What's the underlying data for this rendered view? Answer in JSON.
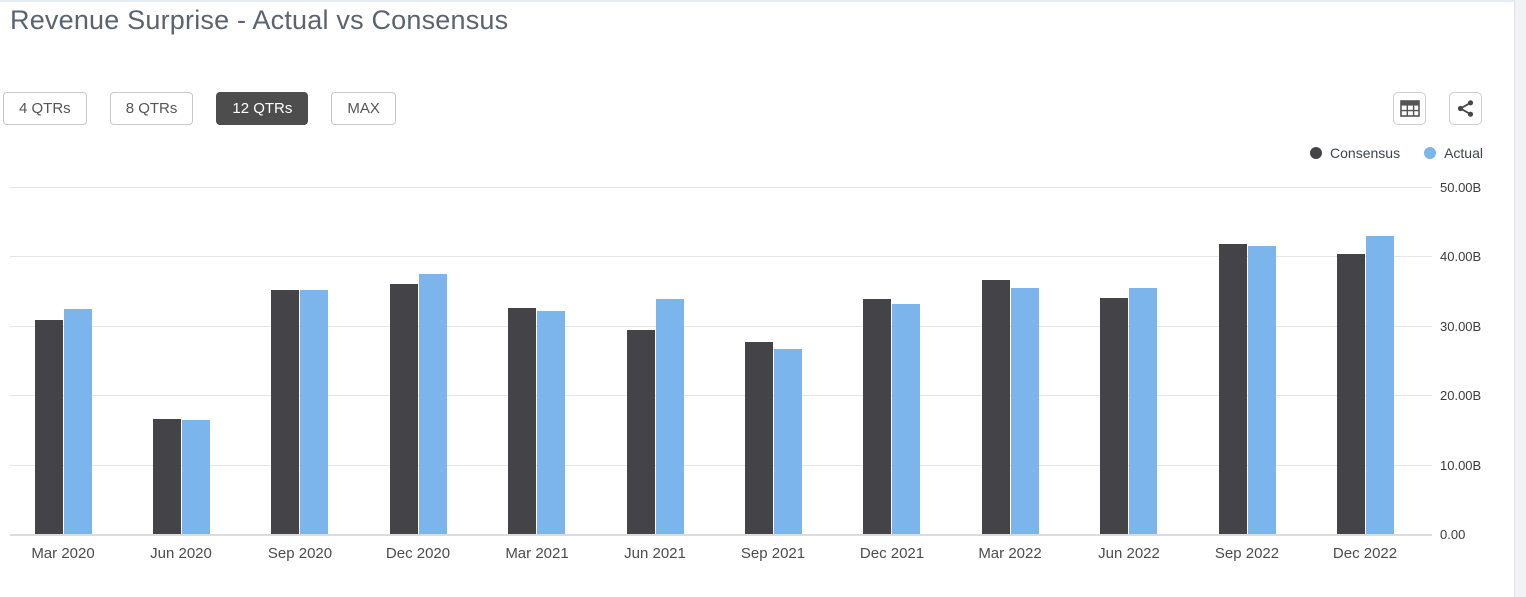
{
  "page": {
    "title": "Revenue Surprise - Actual vs Consensus"
  },
  "toolbar": {
    "range_buttons": [
      {
        "label": "4 QTRs",
        "active": false
      },
      {
        "label": "8 QTRs",
        "active": false
      },
      {
        "label": "12 QTRs",
        "active": true
      },
      {
        "label": "MAX",
        "active": false
      }
    ],
    "icons": [
      "table-view-icon",
      "share-icon"
    ]
  },
  "legend": [
    {
      "label": "Consensus",
      "color": "#434348"
    },
    {
      "label": "Actual",
      "color": "#7cb5ec"
    }
  ],
  "chart_data": {
    "type": "bar",
    "title": "Revenue Surprise - Actual vs Consensus",
    "categories": [
      "Mar 2020",
      "Jun 2020",
      "Sep 2020",
      "Dec 2020",
      "Mar 2021",
      "Jun 2021",
      "Sep 2021",
      "Dec 2021",
      "Mar 2022",
      "Jun 2022",
      "Sep 2022",
      "Dec 2022"
    ],
    "series": [
      {
        "name": "Consensus",
        "color": "#434348",
        "values": [
          30.9,
          16.6,
          35.1,
          36.0,
          32.6,
          29.4,
          27.6,
          33.8,
          36.6,
          34.0,
          41.8,
          40.4
        ]
      },
      {
        "name": "Actual",
        "color": "#7cb5ec",
        "values": [
          32.4,
          16.4,
          35.1,
          37.4,
          32.2,
          33.9,
          26.6,
          33.2,
          35.5,
          35.4,
          41.5,
          43.0
        ]
      }
    ],
    "xlabel": "",
    "ylabel": "",
    "unit": "B",
    "ylim": [
      0,
      50
    ],
    "ytick_labels": [
      "50.00B",
      "40.00B",
      "30.00B",
      "20.00B",
      "10.00B",
      "0.00"
    ],
    "grid": true,
    "legend_position": "top-right"
  }
}
